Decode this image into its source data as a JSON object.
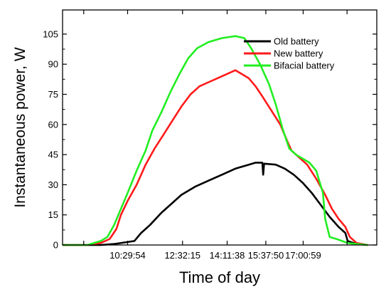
{
  "chart_data": {
    "type": "line",
    "xlabel": "Time of day",
    "ylabel": "Instantaneous power, W",
    "ylim": [
      0,
      117
    ],
    "yticks": [
      0,
      15,
      30,
      45,
      60,
      75,
      90,
      105
    ],
    "xlim": [
      "08:05:00",
      "19:45:00"
    ],
    "xticks": [
      "10:29:54",
      "12:32:15",
      "14:11:38",
      "15:37:50",
      "17:00:59"
    ],
    "grid": false,
    "legend_position": "top-right",
    "series": [
      {
        "name": "Old battery",
        "color": "#000000",
        "points": [
          [
            "08:05:00",
            0
          ],
          [
            "09:30:00",
            0
          ],
          [
            "10:00:00",
            0.5
          ],
          [
            "10:45:00",
            2
          ],
          [
            "11:00:00",
            6
          ],
          [
            "11:20:00",
            10
          ],
          [
            "11:45:00",
            16
          ],
          [
            "12:05:00",
            20
          ],
          [
            "12:30:00",
            25
          ],
          [
            "13:00:00",
            29
          ],
          [
            "13:30:00",
            32
          ],
          [
            "14:00:00",
            35
          ],
          [
            "14:30:00",
            38
          ],
          [
            "15:00:00",
            40
          ],
          [
            "15:15:00",
            41
          ],
          [
            "15:30:00",
            41
          ],
          [
            "15:32:00",
            35
          ],
          [
            "15:34:00",
            40.5
          ],
          [
            "16:00:00",
            40
          ],
          [
            "16:20:00",
            38
          ],
          [
            "16:40:00",
            35
          ],
          [
            "17:00:00",
            31
          ],
          [
            "17:20:00",
            26
          ],
          [
            "17:40:00",
            20
          ],
          [
            "18:00:00",
            14
          ],
          [
            "18:20:00",
            9
          ],
          [
            "18:35:00",
            6
          ],
          [
            "18:40:00",
            2
          ],
          [
            "19:00:00",
            0.5
          ],
          [
            "19:25:00",
            0
          ]
        ]
      },
      {
        "name": "New battery",
        "color": "#ff1a1a",
        "points": [
          [
            "08:05:00",
            0
          ],
          [
            "09:00:00",
            0
          ],
          [
            "09:30:00",
            1
          ],
          [
            "09:50:00",
            3
          ],
          [
            "10:05:00",
            8
          ],
          [
            "10:15:00",
            15
          ],
          [
            "10:30:00",
            22
          ],
          [
            "10:50:00",
            30
          ],
          [
            "11:10:00",
            40
          ],
          [
            "11:30:00",
            48
          ],
          [
            "11:50:00",
            55
          ],
          [
            "12:10:00",
            62
          ],
          [
            "12:30:00",
            69
          ],
          [
            "12:50:00",
            75
          ],
          [
            "13:10:00",
            79
          ],
          [
            "13:30:00",
            81
          ],
          [
            "14:00:00",
            84
          ],
          [
            "14:20:00",
            86
          ],
          [
            "14:30:00",
            87
          ],
          [
            "14:45:00",
            85
          ],
          [
            "15:00:00",
            83
          ],
          [
            "15:15:00",
            79
          ],
          [
            "15:30:00",
            74
          ],
          [
            "15:50:00",
            67
          ],
          [
            "16:10:00",
            60
          ],
          [
            "16:25:00",
            52
          ],
          [
            "16:35:00",
            47
          ],
          [
            "16:50:00",
            44
          ],
          [
            "17:10:00",
            40
          ],
          [
            "17:30:00",
            33
          ],
          [
            "17:50:00",
            25
          ],
          [
            "18:05:00",
            18
          ],
          [
            "18:20:00",
            13
          ],
          [
            "18:35:00",
            9
          ],
          [
            "18:45:00",
            4
          ],
          [
            "19:00:00",
            1
          ],
          [
            "19:25:00",
            0
          ]
        ]
      },
      {
        "name": "Bifacial battery",
        "color": "#22ee22",
        "points": [
          [
            "08:05:00",
            0
          ],
          [
            "09:00:00",
            0
          ],
          [
            "09:30:00",
            2
          ],
          [
            "09:45:00",
            4
          ],
          [
            "10:00:00",
            10
          ],
          [
            "10:15:00",
            18
          ],
          [
            "10:30:00",
            26
          ],
          [
            "10:50:00",
            37
          ],
          [
            "11:10:00",
            47
          ],
          [
            "11:25:00",
            57
          ],
          [
            "11:45:00",
            66
          ],
          [
            "12:05:00",
            76
          ],
          [
            "12:25:00",
            85
          ],
          [
            "12:45:00",
            93
          ],
          [
            "13:05:00",
            98
          ],
          [
            "13:30:00",
            101
          ],
          [
            "14:00:00",
            103
          ],
          [
            "14:30:00",
            104
          ],
          [
            "14:50:00",
            103
          ],
          [
            "15:05:00",
            98
          ],
          [
            "15:25:00",
            90
          ],
          [
            "15:45:00",
            80
          ],
          [
            "16:00:00",
            70
          ],
          [
            "16:15:00",
            58
          ],
          [
            "16:30:00",
            48
          ],
          [
            "16:45:00",
            45
          ],
          [
            "17:00:00",
            43
          ],
          [
            "17:15:00",
            41
          ],
          [
            "17:30:00",
            37
          ],
          [
            "17:45:00",
            26
          ],
          [
            "17:50:00",
            13
          ],
          [
            "18:00:00",
            4
          ],
          [
            "18:15:00",
            3
          ],
          [
            "18:40:00",
            1
          ],
          [
            "19:00:00",
            0.5
          ],
          [
            "19:25:00",
            0
          ]
        ]
      }
    ]
  }
}
